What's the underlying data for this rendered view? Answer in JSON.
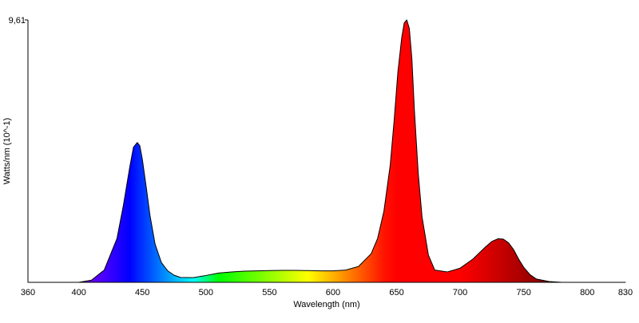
{
  "chart_data": {
    "type": "area",
    "title": "",
    "xlabel": "Wavelength (nm)",
    "ylabel": "Watts/nm (10^-1)",
    "xlim": [
      360,
      830
    ],
    "ylim": [
      0,
      9.61
    ],
    "ymax_label": "9,61",
    "ymin_label": "",
    "x_ticks": [
      360,
      400,
      450,
      500,
      550,
      600,
      650,
      700,
      750,
      800,
      830
    ],
    "grid": false,
    "legend": "none",
    "series": [
      {
        "x": [
          360,
          400,
          410,
          420,
          430,
          435,
          440,
          443,
          446,
          448,
          450,
          453,
          456,
          460,
          465,
          470,
          475,
          480,
          490,
          500,
          510,
          520,
          530,
          540,
          550,
          560,
          570,
          580,
          590,
          600,
          610,
          620,
          630,
          635,
          640,
          645,
          648,
          651,
          654,
          656,
          658,
          660,
          662,
          664,
          667,
          670,
          675,
          680,
          690,
          700,
          710,
          720,
          725,
          730,
          734,
          738,
          742,
          746,
          750,
          755,
          760,
          770,
          780,
          800,
          830
        ],
        "y": [
          0,
          0,
          0.08,
          0.45,
          1.6,
          2.8,
          4.2,
          4.95,
          5.12,
          5.0,
          4.5,
          3.5,
          2.45,
          1.4,
          0.72,
          0.42,
          0.26,
          0.18,
          0.17,
          0.25,
          0.34,
          0.38,
          0.41,
          0.42,
          0.43,
          0.44,
          0.44,
          0.43,
          0.42,
          0.42,
          0.45,
          0.58,
          1.05,
          1.6,
          2.6,
          4.3,
          5.9,
          7.7,
          8.95,
          9.5,
          9.61,
          9.3,
          8.2,
          6.3,
          4.0,
          2.4,
          1.0,
          0.45,
          0.38,
          0.52,
          0.85,
          1.3,
          1.5,
          1.6,
          1.58,
          1.45,
          1.2,
          0.85,
          0.55,
          0.28,
          0.12,
          0.03,
          0,
          0,
          0
        ]
      }
    ]
  }
}
